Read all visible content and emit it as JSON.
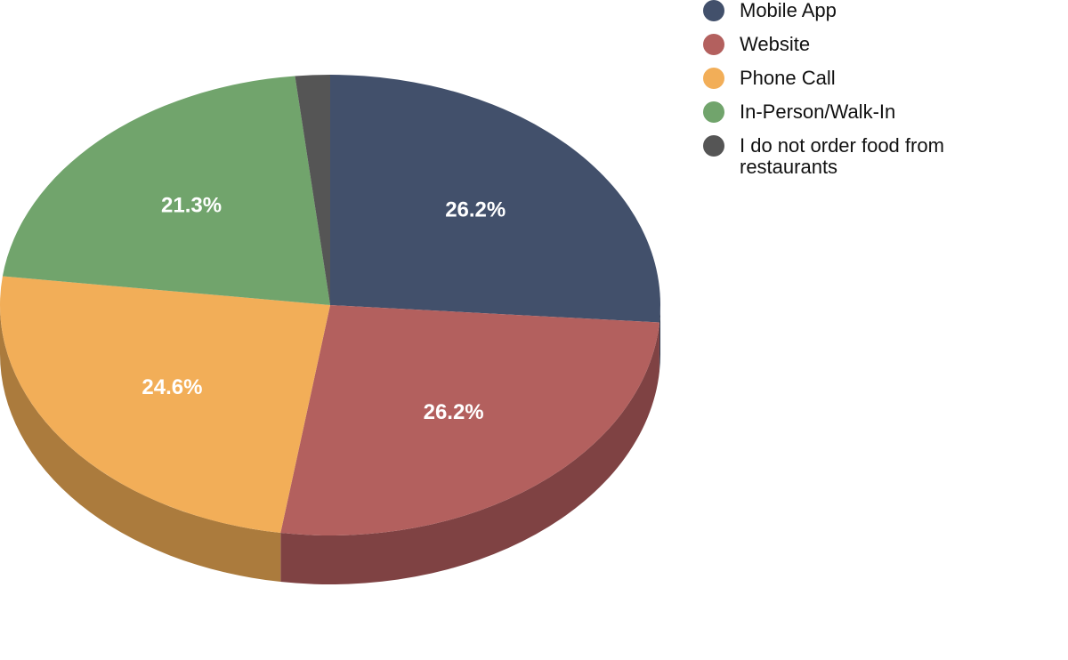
{
  "chart_data": {
    "type": "pie",
    "style": "3d-tilted",
    "title": "",
    "slices": [
      {
        "label": "Mobile App",
        "value": 26.2,
        "display": "26.2%",
        "color": "#42506b",
        "side_color": "#2e3a4f"
      },
      {
        "label": "Website",
        "value": 26.2,
        "display": "26.2%",
        "color": "#b3605e",
        "side_color": "#7f4243"
      },
      {
        "label": "Phone Call",
        "value": 24.6,
        "display": "24.6%",
        "color": "#f2ae58",
        "side_color": "#ab7b3d"
      },
      {
        "label": "In-Person/Walk-In",
        "value": 21.3,
        "display": "21.3%",
        "color": "#71a46c",
        "side_color": "#4f744c"
      },
      {
        "label": "I do not order food from restaurants",
        "value": 1.7,
        "display": "",
        "color": "#555555",
        "side_color": "#3a3a3a"
      }
    ],
    "legend_position": "top-right"
  }
}
